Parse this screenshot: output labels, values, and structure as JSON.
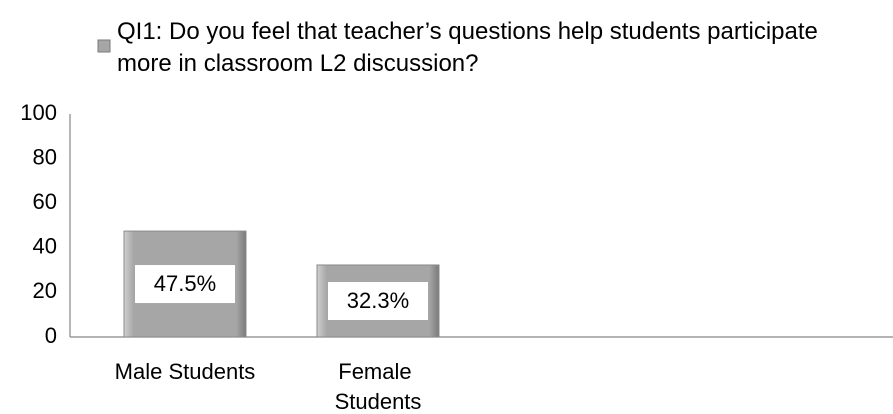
{
  "chart_data": {
    "type": "bar",
    "categories": [
      "Male Students",
      "Female Students"
    ],
    "series": [
      {
        "name": "QI1: Do you feel that teacher’s questions help students participate more in classroom L2 discussion?",
        "color": "#a6a6a6",
        "values": [
          47.5,
          32.3
        ],
        "value_labels": [
          "47.5%",
          "32.3%"
        ]
      }
    ],
    "ylim": [
      0,
      100
    ],
    "yticks": [
      0,
      20,
      40,
      60,
      80,
      100
    ],
    "grid": false,
    "legend": "top"
  }
}
